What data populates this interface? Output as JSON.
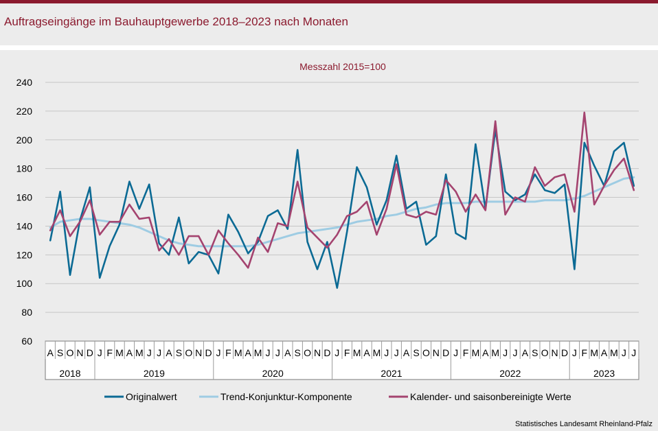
{
  "title": "Auftragseingänge im Bauhauptgewerbe 2018–2023 nach Monaten",
  "source": "Statistisches Landesamt Rheinland-Pfalz",
  "colors": {
    "accent": "#8b1a2e",
    "original": "#0b6a94",
    "trend": "#9ecce3",
    "adjusted": "#a4436f"
  },
  "chart_data": {
    "type": "line",
    "subtitle": "Messzahl 2015=100",
    "ylim": [
      60,
      240
    ],
    "yticks": [
      "60",
      "80",
      "100",
      "120",
      "140",
      "160",
      "180",
      "200",
      "220",
      "240"
    ],
    "grid": true,
    "legend_position": "bottom",
    "x": [
      "A",
      "S",
      "O",
      "N",
      "D",
      "J",
      "F",
      "M",
      "A",
      "M",
      "J",
      "J",
      "A",
      "S",
      "O",
      "N",
      "D",
      "J",
      "F",
      "M",
      "A",
      "M",
      "J",
      "J",
      "A",
      "S",
      "O",
      "N",
      "D",
      "J",
      "F",
      "M",
      "A",
      "M",
      "J",
      "J",
      "A",
      "S",
      "O",
      "N",
      "D",
      "J",
      "F",
      "M",
      "A",
      "M",
      "J",
      "J",
      "A",
      "S",
      "O",
      "N",
      "D",
      "J",
      "F",
      "M",
      "A",
      "M",
      "J",
      "J"
    ],
    "years": [
      {
        "label": "2018",
        "start": 0,
        "count": 5
      },
      {
        "label": "2019",
        "start": 5,
        "count": 12
      },
      {
        "label": "2020",
        "start": 17,
        "count": 12
      },
      {
        "label": "2021",
        "start": 29,
        "count": 12
      },
      {
        "label": "2022",
        "start": 41,
        "count": 12
      },
      {
        "label": "2023",
        "start": 53,
        "count": 7
      }
    ],
    "series": [
      {
        "name": "Originalwert",
        "values": [
          130,
          164,
          106,
          144,
          167,
          104,
          126,
          141,
          171,
          152,
          169,
          128,
          120,
          146,
          114,
          122,
          120,
          107,
          148,
          136,
          121,
          129,
          147,
          151,
          138,
          193,
          129,
          110,
          129,
          97,
          136,
          181,
          167,
          141,
          158,
          189,
          152,
          157,
          127,
          133,
          176,
          135,
          131,
          197,
          152,
          207,
          164,
          158,
          162,
          176,
          165,
          163,
          169,
          110,
          198,
          182,
          168,
          192,
          198,
          168
        ]
      },
      {
        "name": "Trend-Konjunktur-Komponente",
        "values": [
          139,
          143,
          144,
          145,
          145,
          144,
          143,
          142,
          141,
          139,
          136,
          133,
          130,
          128,
          127,
          126,
          126,
          126,
          126,
          126,
          126,
          127,
          129,
          131,
          133,
          135,
          136,
          137,
          138,
          139,
          141,
          143,
          144,
          145,
          147,
          148,
          150,
          152,
          153,
          155,
          156,
          156,
          156,
          157,
          157,
          157,
          157,
          157,
          157,
          157,
          158,
          158,
          158,
          159,
          161,
          164,
          167,
          170,
          173,
          174
        ]
      },
      {
        "name": "Kalender- und saisonbereinigte Werte",
        "values": [
          137,
          151,
          133,
          143,
          158,
          134,
          143,
          143,
          155,
          145,
          146,
          123,
          131,
          120,
          133,
          133,
          120,
          137,
          128,
          120,
          111,
          132,
          122,
          142,
          140,
          171,
          139,
          132,
          125,
          134,
          147,
          150,
          157,
          134,
          152,
          183,
          148,
          146,
          150,
          148,
          172,
          164,
          150,
          162,
          151,
          213,
          148,
          160,
          157,
          181,
          168,
          174,
          176,
          150,
          219,
          155,
          168,
          179,
          187,
          165
        ]
      }
    ]
  }
}
